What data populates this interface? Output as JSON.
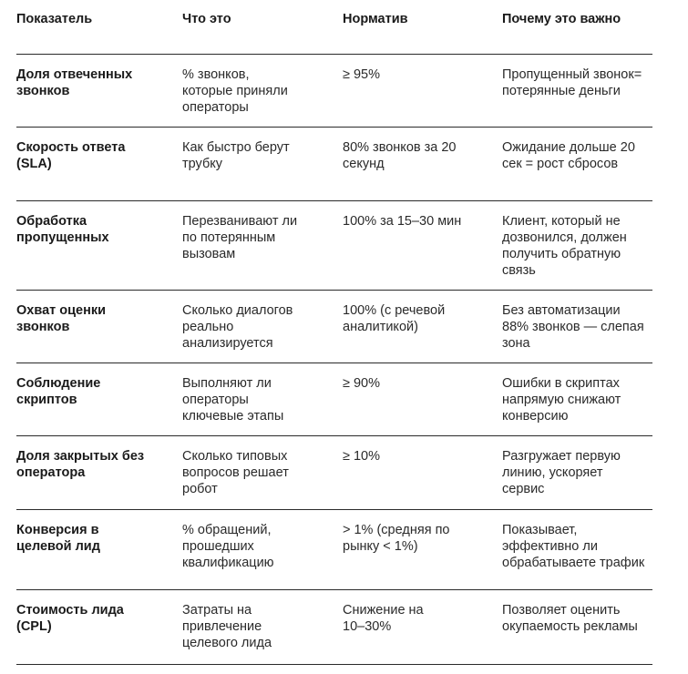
{
  "table": {
    "headers": [
      "Показатель",
      "Что это",
      "Норматив",
      "Почему это важно"
    ],
    "rows": [
      {
        "metric": "Доля отвеченных\nзвонков",
        "what": "% звонков,\nкоторые приняли\nоператоры",
        "norm": "≥ 95%",
        "why": "Пропущенный звонок=\nпотерянные деньги"
      },
      {
        "metric": "Скорость ответа\n(SLA)",
        "what": "Как быстро берут\nтрубку",
        "norm": "80% звонков за 20\nсекунд",
        "why": "Ожидание дольше 20\nсек = рост сбросов"
      },
      {
        "metric": "Обработка\nпропущенных",
        "what": "Перезванивают ли\nпо потерянным\nвызовам",
        "norm": "100% за 15–30 мин",
        "why": "Клиент, который не\nдозвонился, должен\nполучить обратную\nсвязь"
      },
      {
        "metric": "Охват оценки\nзвонков",
        "what": "Сколько диалогов\nреально\nанализируется",
        "norm": "100% (с речевой\nаналитикой)",
        "why": "Без автоматизации\n88% звонков — слепая\nзона"
      },
      {
        "metric": "Соблюдение\nскриптов",
        "what": "Выполняют ли\nоператоры\nключевые этапы",
        "norm": "≥ 90%",
        "why": "Ошибки в скриптах\nнапрямую снижают\nконверсию"
      },
      {
        "metric": "Доля закрытых без\nоператора",
        "what": "Сколько типовых\nвопросов решает\nробот",
        "norm": "≥ 10%",
        "why": "Разгружает первую\nлинию, ускоряет\nсервис"
      },
      {
        "metric": "Конверсия в\nцелевой лид",
        "what": "% обращений,\nпрошедших\nквалификацию",
        "norm": "> 1% (средняя по\nрынку < 1%)",
        "why": "Показывает,\nэффективно ли\nобрабатываете трафик"
      },
      {
        "metric": "Стоимость лида\n(CPL)",
        "what": "Затраты на\nпривлечение\nцелевого лида",
        "norm": "Снижение на\n10–30%",
        "why": "Позволяет оценить\nокупаемость рекламы"
      }
    ]
  }
}
